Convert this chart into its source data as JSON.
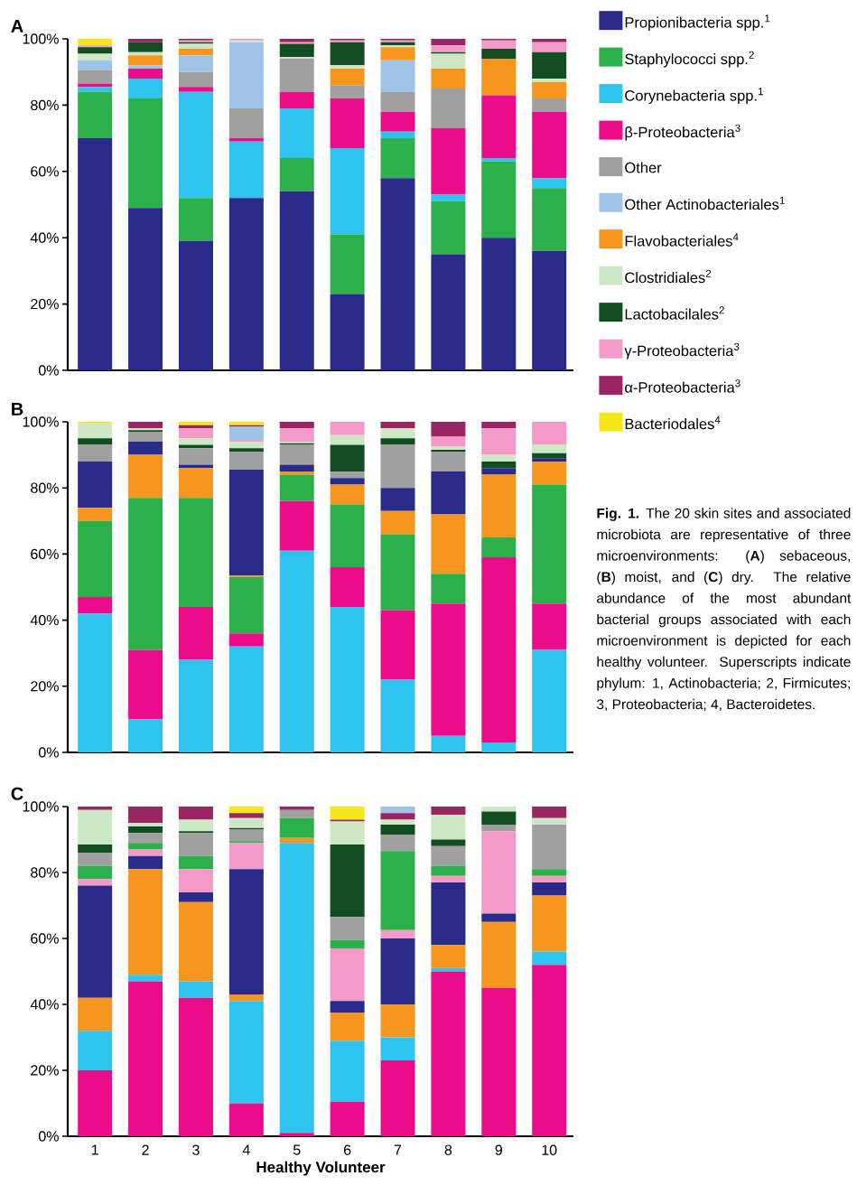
{
  "chart_data": [
    {
      "type": "bar",
      "stacked": true,
      "title": "A",
      "categories": [
        "1",
        "2",
        "3",
        "4",
        "5",
        "6",
        "7",
        "8",
        "9",
        "10"
      ],
      "tick_labels": "y",
      "ylim": [
        0,
        100
      ],
      "yticks": [
        {
          "value": 0,
          "label": "0%"
        },
        {
          "value": 20,
          "label": "20%"
        },
        {
          "value": 40,
          "label": "40%"
        },
        {
          "value": 60,
          "label": "60%"
        },
        {
          "value": 80,
          "label": "80%"
        },
        {
          "value": 100,
          "label": "100%"
        }
      ],
      "legend": "right",
      "series": [
        {
          "name": "Propionibacteria spp.$^{1}$",
          "color": "#2a2a8a",
          "values": [
            70,
            49,
            39,
            52,
            54,
            23,
            58,
            35,
            40,
            36
          ]
        },
        {
          "name": "Staphylococci spp.$^{2}$",
          "color": "#2bb04a",
          "values": [
            14,
            33,
            13,
            0,
            10,
            18,
            12,
            16,
            23,
            19
          ]
        },
        {
          "name": "Corynebacteria spp.$^{1}$",
          "color": "#2ec4ef",
          "values": [
            1.5,
            6,
            32,
            17,
            15,
            26,
            2,
            2,
            1,
            3
          ]
        },
        {
          "name": "β-Proteobacteria$^{3}$",
          "color": "#ec0c8a",
          "values": [
            1,
            3,
            1.5,
            1,
            5,
            15,
            6,
            20,
            19,
            20
          ]
        },
        {
          "name": "Other",
          "color": "#a0a0a0",
          "values": [
            4,
            0,
            4.5,
            9,
            10,
            4,
            6,
            12,
            0,
            4
          ]
        },
        {
          "name": "Other Actinobacteriales$^{1}$",
          "color": "#9fc4e8",
          "values": [
            3,
            1,
            5,
            20,
            0,
            0,
            9.5,
            0,
            0,
            0
          ]
        },
        {
          "name": "Flavobacteriales$^{4}$",
          "color": "#f6961e",
          "values": [
            0,
            3,
            2,
            0,
            0,
            5,
            4,
            6,
            11,
            5
          ]
        },
        {
          "name": "Clostridiales$^{2}$",
          "color": "#cde8c4",
          "values": [
            2,
            1,
            1.5,
            0.5,
            0.5,
            1,
            0.5,
            4.5,
            0,
            1
          ]
        },
        {
          "name": "Lactobacilales$^{2}$",
          "color": "#124d22",
          "values": [
            2,
            3,
            0.5,
            0,
            4,
            7,
            1,
            0.5,
            3,
            8
          ]
        },
        {
          "name": "γ-Proteobacteria$^{3}$",
          "color": "#f49ac8",
          "values": [
            0.5,
            0,
            0.5,
            0.5,
            0.5,
            0.5,
            0.5,
            2,
            2.5,
            3
          ]
        },
        {
          "name": "α-Proteobacteria$^{3}$",
          "color": "#9b2463",
          "values": [
            0,
            1,
            0.5,
            0,
            1,
            0.5,
            0.5,
            2,
            0.5,
            1
          ]
        },
        {
          "name": "Bacteriodales$^{4}$",
          "color": "#f5e61a",
          "values": [
            2,
            0,
            0,
            0,
            0,
            0,
            0,
            0,
            0,
            0
          ]
        }
      ]
    },
    {
      "type": "bar",
      "stacked": true,
      "title": "B",
      "categories": [
        "1",
        "2",
        "3",
        "4",
        "5",
        "6",
        "7",
        "8",
        "9",
        "10"
      ],
      "tick_labels": "y",
      "ylim": [
        0,
        100
      ],
      "yticks": [
        {
          "value": 0,
          "label": "0%"
        },
        {
          "value": 20,
          "label": "20%"
        },
        {
          "value": 40,
          "label": "40%"
        },
        {
          "value": 60,
          "label": "60%"
        },
        {
          "value": 80,
          "label": "80%"
        },
        {
          "value": 100,
          "label": "100%"
        }
      ],
      "annotations": [
        "**Fig. 1.** The 20 skin sites and associated microbiota are representative of three microenvironments: (**A**) sebaceous, (**B**) moist, and (**C**) dry. The relative abundance of the most abundant bacterial groups associated with each microenvironment is depicted for each healthy volunteer. Superscripts indicate phylum: 1, Actinobacteria; 2, Firmicutes; 3, Proteobacteria; 4, Bacteroidetes."
      ],
      "series": [
        {
          "color": "#2ec4ef",
          "values": [
            42,
            10,
            28,
            32,
            61,
            44,
            22,
            5,
            3,
            31
          ]
        },
        {
          "color": "#ec0c8a",
          "values": [
            5,
            21,
            16,
            4,
            15,
            12,
            21,
            40,
            56,
            14
          ]
        },
        {
          "color": "#2bb04a",
          "values": [
            23,
            46,
            33,
            17,
            8,
            19,
            23,
            9,
            6,
            36
          ]
        },
        {
          "color": "#f6961e",
          "values": [
            4,
            13,
            9,
            0.5,
            1,
            6,
            7,
            18,
            19,
            7
          ]
        },
        {
          "color": "#2a2a8a",
          "values": [
            14,
            4,
            1,
            32,
            2,
            2,
            7,
            13,
            2,
            1
          ]
        },
        {
          "color": "#a0a0a0",
          "values": [
            5,
            3,
            5,
            5.5,
            6,
            2,
            13,
            6,
            0,
            0
          ]
        },
        {
          "color": "#124d22",
          "values": [
            2,
            0.5,
            1,
            1,
            0.5,
            8,
            2,
            0.5,
            2,
            1.5
          ]
        },
        {
          "color": "#cde8c4",
          "values": [
            4.5,
            0.5,
            2,
            2,
            0.5,
            3,
            3,
            1,
            2,
            2.5
          ]
        },
        {
          "color": "#f49ac8",
          "values": [
            0,
            0,
            3,
            0.5,
            4,
            4,
            0,
            3,
            8,
            7
          ]
        },
        {
          "color": "#9fc4e8",
          "values": [
            0,
            0,
            0,
            4,
            0,
            0,
            0,
            0,
            0,
            0
          ]
        },
        {
          "color": "#9b2463",
          "values": [
            0,
            2,
            1,
            0.5,
            2,
            0,
            2,
            4.5,
            2,
            0
          ]
        },
        {
          "color": "#f5e61a",
          "values": [
            0.5,
            0,
            1,
            1,
            0,
            0,
            0,
            0,
            0,
            0
          ]
        }
      ]
    },
    {
      "type": "bar",
      "stacked": true,
      "title": "C",
      "xlabel": "Healthy Volunteer",
      "categories": [
        "1",
        "2",
        "3",
        "4",
        "5",
        "6",
        "7",
        "8",
        "9",
        "10"
      ],
      "ylim": [
        0,
        100
      ],
      "yticks": [
        {
          "value": 0,
          "label": "0%"
        },
        {
          "value": 20,
          "label": "20%"
        },
        {
          "value": 40,
          "label": "40%"
        },
        {
          "value": 60,
          "label": "60%"
        },
        {
          "value": 80,
          "label": "80%"
        },
        {
          "value": 100,
          "label": "100%"
        }
      ],
      "series": [
        {
          "color": "#ec0c8a",
          "values": [
            20,
            47,
            42,
            10,
            1,
            10.5,
            23,
            50,
            45,
            52
          ]
        },
        {
          "color": "#2ec4ef",
          "values": [
            12,
            2,
            5,
            31,
            88,
            18.5,
            7,
            1,
            0,
            4
          ]
        },
        {
          "color": "#f6961e",
          "values": [
            10,
            32,
            24,
            2,
            1.5,
            8.5,
            10,
            7,
            20,
            17
          ]
        },
        {
          "color": "#2a2a8a",
          "values": [
            34,
            4,
            3,
            38,
            0,
            3.5,
            20,
            19,
            2.5,
            4
          ]
        },
        {
          "color": "#f49ac8",
          "values": [
            2,
            2,
            7,
            8,
            0,
            16,
            2.5,
            2,
            25,
            2
          ]
        },
        {
          "color": "#2bb04a",
          "values": [
            4,
            2,
            4,
            0.5,
            6,
            2.5,
            24,
            3,
            0,
            2
          ]
        },
        {
          "color": "#a0a0a0",
          "values": [
            4,
            3,
            7,
            3.5,
            2.5,
            7,
            5,
            6,
            2,
            13.5
          ]
        },
        {
          "color": "#124d22",
          "values": [
            2.5,
            2,
            0.5,
            0.5,
            0,
            22,
            3,
            2,
            4,
            0
          ]
        },
        {
          "color": "#cde8c4",
          "values": [
            10.5,
            1,
            3.5,
            3,
            0,
            7,
            1.5,
            7.5,
            1.5,
            2
          ]
        },
        {
          "color": "#9b2463",
          "values": [
            1,
            5,
            4,
            1.5,
            1,
            0.5,
            2,
            2.5,
            0,
            3.5
          ]
        },
        {
          "color": "#9fc4e8",
          "values": [
            0,
            0,
            0,
            0,
            0,
            0,
            2,
            0,
            0,
            0
          ]
        },
        {
          "color": "#f5e61a",
          "values": [
            0,
            0,
            0,
            2,
            0,
            4,
            0,
            0,
            0,
            0
          ]
        }
      ]
    }
  ]
}
